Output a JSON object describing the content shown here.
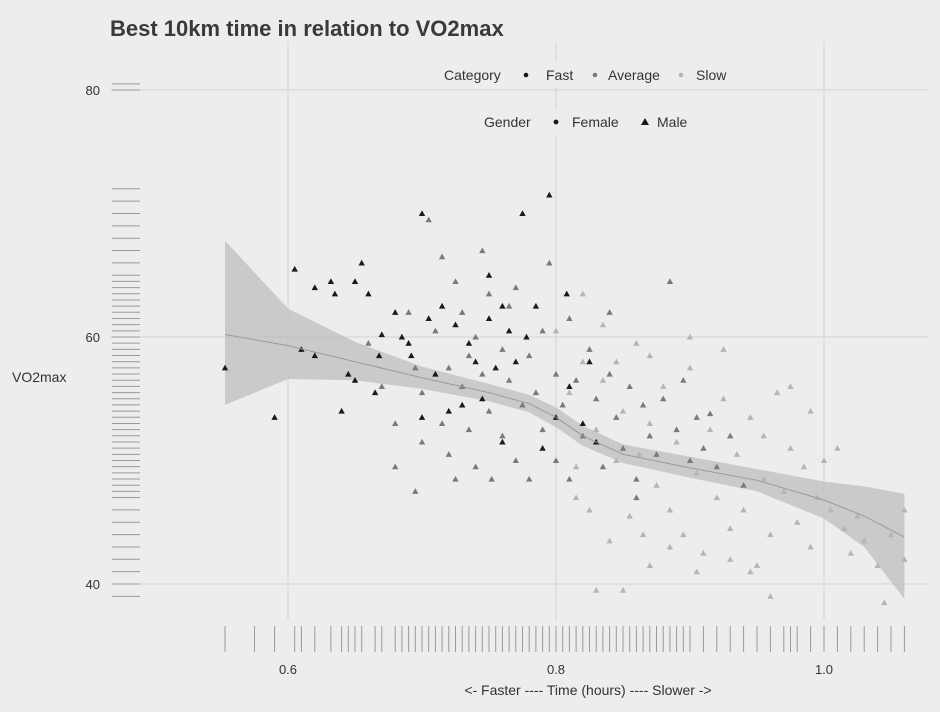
{
  "chart_data": {
    "type": "scatter",
    "title": "Best 10km time in relation to VO2max",
    "xlabel": "<- Faster ---- Time (hours) ---- Slower ->",
    "ylabel": "VO2max",
    "xlim": [
      0.55,
      1.065
    ],
    "ylim": [
      38,
      82
    ],
    "xticks": [
      0.6,
      0.8,
      1.0
    ],
    "xtick_labels": [
      "0.6",
      "0.8",
      "1.0"
    ],
    "yticks": [
      40,
      60,
      80
    ],
    "ytick_labels": [
      "40",
      "60",
      "80"
    ],
    "grid": true,
    "legend": {
      "placement": "top",
      "category": {
        "title": "Category",
        "items": [
          {
            "label": "Fast",
            "color": "#1a1a1a"
          },
          {
            "label": "Average",
            "color": "#7a7a7a"
          },
          {
            "label": "Slow",
            "color": "#b5b5b5"
          }
        ]
      },
      "gender": {
        "title": "Gender",
        "items": [
          {
            "label": "Female",
            "shape": "circle"
          },
          {
            "label": "Male",
            "shape": "triangle"
          }
        ]
      }
    },
    "colors": {
      "Fast": "#1a1a1a",
      "Average": "#7a7a7a",
      "Slow": "#b5b5b5"
    },
    "series": [
      {
        "name": "Fast",
        "points": [
          [
            0.553,
            57.5
          ],
          [
            0.59,
            53.5
          ],
          [
            0.605,
            65.5
          ],
          [
            0.61,
            59
          ],
          [
            0.62,
            64
          ],
          [
            0.62,
            58.5
          ],
          [
            0.632,
            64.5
          ],
          [
            0.635,
            63.5
          ],
          [
            0.64,
            54
          ],
          [
            0.645,
            57
          ],
          [
            0.65,
            64.5
          ],
          [
            0.65,
            56.5
          ],
          [
            0.655,
            66
          ],
          [
            0.66,
            63.5
          ],
          [
            0.665,
            55.5
          ],
          [
            0.668,
            58.5
          ],
          [
            0.68,
            62
          ],
          [
            0.685,
            60
          ],
          [
            0.69,
            59.5
          ],
          [
            0.692,
            58.5
          ],
          [
            0.7,
            70
          ],
          [
            0.705,
            61.5
          ],
          [
            0.71,
            57
          ],
          [
            0.72,
            54
          ],
          [
            0.725,
            61
          ],
          [
            0.735,
            59.5
          ],
          [
            0.74,
            58
          ],
          [
            0.745,
            55
          ],
          [
            0.75,
            61.5
          ],
          [
            0.755,
            57.5
          ],
          [
            0.765,
            60.5
          ],
          [
            0.77,
            58
          ],
          [
            0.778,
            60
          ],
          [
            0.785,
            62.5
          ],
          [
            0.79,
            51
          ],
          [
            0.795,
            71.5
          ],
          [
            0.8,
            53.5
          ],
          [
            0.808,
            63.5
          ],
          [
            0.81,
            56
          ],
          [
            0.82,
            53
          ],
          [
            0.825,
            58
          ],
          [
            0.83,
            51.5
          ],
          [
            0.7,
            53.5
          ],
          [
            0.715,
            62.5
          ],
          [
            0.73,
            54.5
          ],
          [
            0.76,
            62.5
          ],
          [
            0.775,
            70
          ],
          [
            0.75,
            65
          ],
          [
            0.76,
            51.5
          ],
          [
            0.67,
            60.2
          ]
        ]
      },
      {
        "name": "Average",
        "points": [
          [
            0.66,
            59.5
          ],
          [
            0.67,
            56
          ],
          [
            0.68,
            53
          ],
          [
            0.68,
            49.5
          ],
          [
            0.69,
            62
          ],
          [
            0.695,
            57.5
          ],
          [
            0.7,
            55.5
          ],
          [
            0.7,
            51.5
          ],
          [
            0.705,
            69.5
          ],
          [
            0.71,
            60.5
          ],
          [
            0.715,
            53
          ],
          [
            0.72,
            57.5
          ],
          [
            0.72,
            50.5
          ],
          [
            0.725,
            64.5
          ],
          [
            0.73,
            62
          ],
          [
            0.73,
            56
          ],
          [
            0.735,
            52.5
          ],
          [
            0.74,
            60
          ],
          [
            0.74,
            49.5
          ],
          [
            0.745,
            57
          ],
          [
            0.75,
            63.5
          ],
          [
            0.75,
            54
          ],
          [
            0.752,
            48.5
          ],
          [
            0.76,
            59
          ],
          [
            0.76,
            52
          ],
          [
            0.765,
            56.5
          ],
          [
            0.77,
            50
          ],
          [
            0.77,
            64
          ],
          [
            0.775,
            54.5
          ],
          [
            0.78,
            58.5
          ],
          [
            0.78,
            48.5
          ],
          [
            0.785,
            55.5
          ],
          [
            0.79,
            60.5
          ],
          [
            0.79,
            52.5
          ],
          [
            0.795,
            66
          ],
          [
            0.8,
            57
          ],
          [
            0.8,
            50
          ],
          [
            0.805,
            54.5
          ],
          [
            0.81,
            61.5
          ],
          [
            0.81,
            48.5
          ],
          [
            0.815,
            56.5
          ],
          [
            0.82,
            52
          ],
          [
            0.825,
            59
          ],
          [
            0.83,
            55
          ],
          [
            0.835,
            49.5
          ],
          [
            0.84,
            57
          ],
          [
            0.845,
            53.5
          ],
          [
            0.85,
            51
          ],
          [
            0.855,
            56
          ],
          [
            0.86,
            48.5
          ],
          [
            0.865,
            54.5
          ],
          [
            0.87,
            52
          ],
          [
            0.875,
            50.5
          ],
          [
            0.88,
            55
          ],
          [
            0.885,
            64.5
          ],
          [
            0.89,
            52.5
          ],
          [
            0.9,
            50
          ],
          [
            0.905,
            53.5
          ],
          [
            0.91,
            51
          ],
          [
            0.92,
            49.5
          ],
          [
            0.93,
            52
          ],
          [
            0.94,
            48
          ],
          [
            0.715,
            66.5
          ],
          [
            0.745,
            67
          ],
          [
            0.725,
            48.5
          ],
          [
            0.765,
            62.5
          ],
          [
            0.695,
            47.5
          ],
          [
            0.735,
            58.5
          ],
          [
            0.84,
            62
          ],
          [
            0.86,
            47
          ],
          [
            0.895,
            56.5
          ],
          [
            0.915,
            53.8
          ]
        ]
      },
      {
        "name": "Slow",
        "points": [
          [
            0.8,
            60.5
          ],
          [
            0.81,
            55.5
          ],
          [
            0.815,
            49.5
          ],
          [
            0.82,
            58
          ],
          [
            0.825,
            46
          ],
          [
            0.83,
            52.5
          ],
          [
            0.835,
            56.5
          ],
          [
            0.84,
            43.5
          ],
          [
            0.845,
            50
          ],
          [
            0.85,
            54
          ],
          [
            0.855,
            45.5
          ],
          [
            0.86,
            59.5
          ],
          [
            0.862,
            50.5
          ],
          [
            0.865,
            44
          ],
          [
            0.87,
            53
          ],
          [
            0.875,
            48
          ],
          [
            0.88,
            56
          ],
          [
            0.885,
            46
          ],
          [
            0.89,
            51.5
          ],
          [
            0.895,
            44
          ],
          [
            0.9,
            57.5
          ],
          [
            0.905,
            49
          ],
          [
            0.91,
            42.5
          ],
          [
            0.915,
            52.5
          ],
          [
            0.92,
            47
          ],
          [
            0.925,
            55
          ],
          [
            0.93,
            44.5
          ],
          [
            0.935,
            50.5
          ],
          [
            0.94,
            46
          ],
          [
            0.945,
            53.5
          ],
          [
            0.95,
            41.5
          ],
          [
            0.955,
            48.5
          ],
          [
            0.96,
            44
          ],
          [
            0.965,
            55.5
          ],
          [
            0.97,
            47.5
          ],
          [
            0.975,
            51
          ],
          [
            0.98,
            45
          ],
          [
            0.985,
            49.5
          ],
          [
            0.99,
            43
          ],
          [
            0.995,
            47
          ],
          [
            1.0,
            50
          ],
          [
            1.005,
            46
          ],
          [
            1.01,
            51
          ],
          [
            1.015,
            44.5
          ],
          [
            1.02,
            42.5
          ],
          [
            1.025,
            45.5
          ],
          [
            1.03,
            43.5
          ],
          [
            1.04,
            41.5
          ],
          [
            1.05,
            44
          ],
          [
            1.06,
            46
          ],
          [
            1.06,
            42
          ],
          [
            0.82,
            63.5
          ],
          [
            0.835,
            61
          ],
          [
            0.87,
            58.5
          ],
          [
            0.9,
            60
          ],
          [
            0.925,
            59
          ],
          [
            0.945,
            41
          ],
          [
            0.96,
            39
          ],
          [
            0.99,
            54
          ],
          [
            0.975,
            56
          ],
          [
            0.83,
            39.5
          ],
          [
            0.85,
            39.5
          ],
          [
            0.885,
            43
          ],
          [
            0.905,
            41
          ],
          [
            0.93,
            42
          ],
          [
            0.955,
            52
          ],
          [
            1.045,
            38.5
          ],
          [
            0.815,
            47
          ],
          [
            0.845,
            58
          ],
          [
            0.87,
            41.5
          ]
        ]
      }
    ],
    "smooth_fit": {
      "x": [
        0.553,
        0.6,
        0.65,
        0.7,
        0.75,
        0.78,
        0.8,
        0.82,
        0.85,
        0.9,
        0.95,
        1.0,
        1.03,
        1.06
      ],
      "y": [
        60.2,
        59.3,
        58.0,
        56.7,
        55.5,
        54.6,
        53.5,
        52.0,
        50.5,
        49.4,
        48.4,
        46.8,
        45.5,
        43.8
      ],
      "lower": [
        54.5,
        56.6,
        56.5,
        55.8,
        54.8,
        53.9,
        52.7,
        51.2,
        49.8,
        48.6,
        47.5,
        45.3,
        43.0,
        38.8
      ],
      "upper": [
        67.8,
        62.3,
        59.6,
        57.6,
        56.2,
        55.3,
        54.3,
        52.8,
        51.3,
        50.3,
        49.3,
        48.3,
        47.9,
        47.3
      ]
    },
    "rug_x": [
      0.553,
      0.575,
      0.59,
      0.605,
      0.61,
      0.62,
      0.632,
      0.64,
      0.645,
      0.65,
      0.655,
      0.665,
      0.67,
      0.68,
      0.685,
      0.69,
      0.695,
      0.7,
      0.705,
      0.71,
      0.715,
      0.72,
      0.725,
      0.73,
      0.735,
      0.74,
      0.745,
      0.75,
      0.755,
      0.76,
      0.765,
      0.77,
      0.775,
      0.78,
      0.785,
      0.79,
      0.795,
      0.8,
      0.805,
      0.81,
      0.815,
      0.82,
      0.825,
      0.83,
      0.835,
      0.84,
      0.845,
      0.85,
      0.855,
      0.86,
      0.865,
      0.87,
      0.875,
      0.88,
      0.885,
      0.89,
      0.895,
      0.9,
      0.91,
      0.92,
      0.93,
      0.94,
      0.95,
      0.96,
      0.97,
      0.975,
      0.98,
      0.99,
      1.0,
      1.01,
      1.02,
      1.03,
      1.04,
      1.05,
      1.06
    ],
    "rug_y": [
      39,
      40,
      41,
      42,
      43,
      44,
      45,
      46,
      47,
      47.5,
      48,
      48.5,
      49,
      49.5,
      50,
      50.5,
      51,
      51.5,
      52,
      52.5,
      53,
      53.5,
      54,
      54.5,
      55,
      55.5,
      56,
      56.5,
      57,
      57.5,
      58,
      58.5,
      59,
      59.5,
      60,
      60.5,
      61,
      61.5,
      62,
      62.5,
      63,
      63.5,
      64,
      64.5,
      65,
      66,
      67,
      68,
      69,
      70,
      71,
      72,
      80,
      80.5
    ]
  }
}
